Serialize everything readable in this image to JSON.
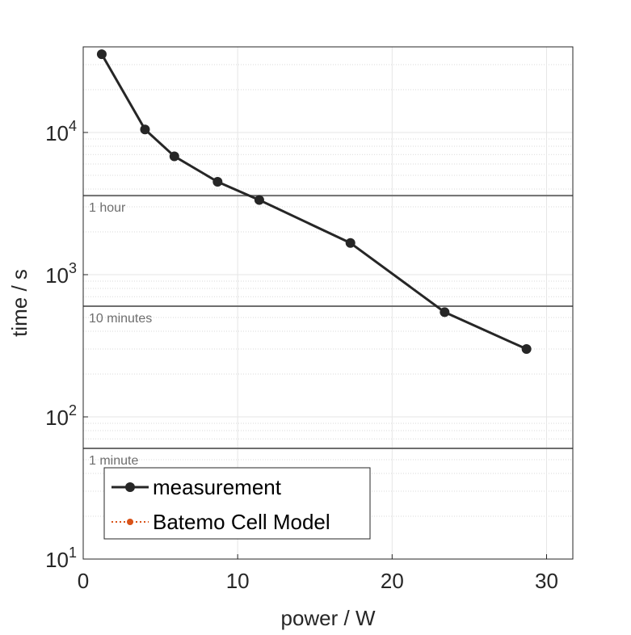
{
  "chart_data": {
    "type": "line",
    "xlabel": "power / W",
    "ylabel": "time / s",
    "xlim": [
      0,
      31.7
    ],
    "ylim": [
      10,
      40000
    ],
    "y_scale": "log",
    "grid": true,
    "minor_grid": true,
    "x_ticks": [
      0,
      10,
      20,
      30
    ],
    "x_tick_labels": [
      "0",
      "10",
      "20",
      "30"
    ],
    "y_ticks": [
      10,
      100,
      1000,
      10000
    ],
    "y_tick_labels": [
      {
        "base": "10",
        "exp": "1"
      },
      {
        "base": "10",
        "exp": "2"
      },
      {
        "base": "10",
        "exp": "3"
      },
      {
        "base": "10",
        "exp": "4"
      }
    ],
    "series": [
      {
        "name": "measurement",
        "color": "#262626",
        "marker": "circle",
        "x": [
          1.2,
          4.0,
          5.9,
          8.7,
          11.4,
          17.3,
          23.4,
          28.7
        ],
        "y": [
          35500,
          10500,
          6800,
          4500,
          3350,
          1670,
          545,
          300
        ]
      },
      {
        "name": "Batemo Cell Model",
        "color": "#d95319",
        "marker": "circle",
        "line_style": "dotted",
        "x": [],
        "y": []
      }
    ],
    "reference_lines": [
      {
        "value": 3600,
        "label": "1 hour"
      },
      {
        "value": 600,
        "label": "10 minutes"
      },
      {
        "value": 60,
        "label": "1 minute"
      }
    ],
    "reference_line_color": "#6e6e6e",
    "legend_position": "bottom-left"
  }
}
